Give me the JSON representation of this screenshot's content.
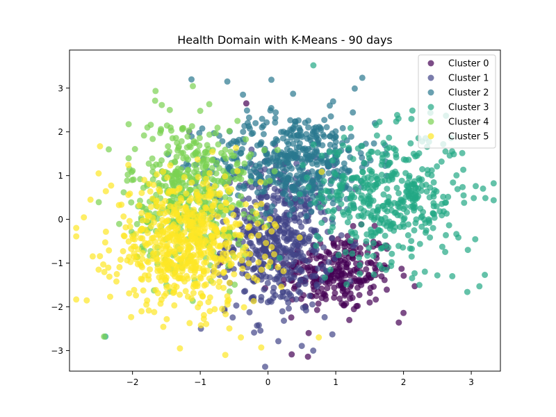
{
  "chart_data": {
    "type": "scatter",
    "title": "Health Domain with K-Means - 90 days",
    "xlabel": "",
    "ylabel": "",
    "xlim": [
      -2.93,
      3.43
    ],
    "ylim": [
      -3.47,
      3.87
    ],
    "x_ticks": [
      -2,
      -1,
      0,
      1,
      2,
      3
    ],
    "y_ticks": [
      -3,
      -2,
      -1,
      0,
      1,
      2,
      3
    ],
    "x_tick_labels": [
      "−2",
      "−1",
      "0",
      "1",
      "2",
      "3"
    ],
    "y_tick_labels": [
      "−3",
      "−2",
      "−1",
      "0",
      "1",
      "2",
      "3"
    ],
    "grid": false,
    "legend_position": "top-right",
    "marker_alpha": 0.7,
    "series": [
      {
        "name": "Cluster 0",
        "color": "#440154",
        "center": [
          1.0,
          -1.2
        ],
        "spread": [
          0.42,
          0.45
        ],
        "count": 260,
        "points": [
          [
            0.59,
            -3.14
          ],
          [
            -0.32,
            2.65
          ],
          [
            1.93,
            -2.36
          ],
          [
            2.0,
            -2.14
          ],
          [
            1.5,
            -1.9
          ],
          [
            1.2,
            -2.3
          ],
          [
            0.6,
            -2.6
          ],
          [
            1.75,
            -0.6
          ]
        ]
      },
      {
        "name": "Cluster 1",
        "color": "#414487",
        "center": [
          0.15,
          -0.45
        ],
        "spread": [
          0.38,
          0.85
        ],
        "count": 520,
        "points": [
          [
            -1.16,
            2.0
          ],
          [
            -0.99,
            -2.5
          ],
          [
            0.95,
            -2.63
          ],
          [
            -0.2,
            -1.4
          ]
        ]
      },
      {
        "name": "Cluster 2",
        "color": "#2a788e",
        "center": [
          0.4,
          1.35
        ],
        "spread": [
          0.6,
          0.55
        ],
        "count": 450,
        "points": [
          [
            -1.13,
            3.2
          ],
          [
            -0.6,
            3.15
          ],
          [
            0.05,
            3.19
          ],
          [
            1.28,
            2.99
          ],
          [
            -0.37,
            2.85
          ],
          [
            0.37,
            2.87
          ]
        ]
      },
      {
        "name": "Cluster 3",
        "color": "#22a884",
        "center": [
          1.8,
          0.5
        ],
        "spread": [
          0.55,
          0.75
        ],
        "count": 420,
        "points": [
          [
            0.67,
            3.52
          ],
          [
            3.2,
            -1.27
          ],
          [
            3.12,
            -1.53
          ],
          [
            2.95,
            -0.7
          ],
          [
            2.72,
            -1.3
          ],
          [
            2.62,
            1.55
          ],
          [
            2.12,
            -0.85
          ],
          [
            2.5,
            -1.28
          ],
          [
            -2.4,
            -2.68
          ]
        ]
      },
      {
        "name": "Cluster 4",
        "color": "#7ad151",
        "center": [
          -1.15,
          0.6
        ],
        "spread": [
          0.45,
          0.85
        ],
        "count": 460,
        "points": [
          [
            -1.45,
            2.5
          ],
          [
            -1.78,
            2.1
          ],
          [
            -2.35,
            1.6
          ],
          [
            -2.42,
            -2.68
          ],
          [
            -1.0,
            2.48
          ]
        ]
      },
      {
        "name": "Cluster 5",
        "color": "#fde725",
        "center": [
          -1.2,
          -0.55
        ],
        "spread": [
          0.55,
          0.75
        ],
        "count": 620,
        "points": [
          [
            -2.62,
            0.45
          ],
          [
            -2.5,
            1.05
          ],
          [
            -2.48,
            1.67
          ],
          [
            -0.63,
            -3.1
          ],
          [
            -1.3,
            -2.95
          ],
          [
            -0.1,
            -2.93
          ],
          [
            -2.5,
            -1.15
          ],
          [
            0.75,
            -2.7
          ],
          [
            -0.4,
            -2.7
          ]
        ]
      }
    ]
  }
}
